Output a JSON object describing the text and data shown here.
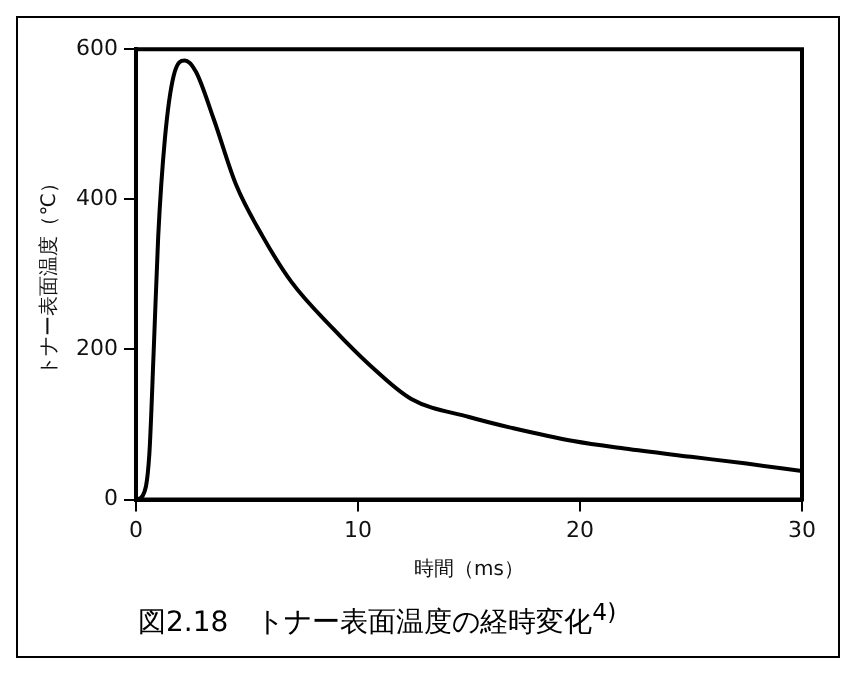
{
  "chart_data": {
    "type": "line",
    "title": "図2.18　トナー表面温度の経時変化$^{4)}$",
    "xlabel": "時間（ms）",
    "ylabel": "トナー表面温度（℃）",
    "x": [
      0,
      0.3,
      0.6,
      0.8,
      1.0,
      1.3,
      1.7,
      2.2,
      2.7,
      3.5,
      4.5,
      5.7,
      7,
      8.9,
      10.5,
      12.4,
      15,
      17,
      19.7,
      22,
      25,
      27.5,
      30
    ],
    "series": [
      {
        "color": "#000000",
        "values": [
          0,
          5,
          60,
          200,
          350,
          480,
          565,
          585,
          570,
          507,
          420,
          351,
          290,
          227,
          180,
          134,
          110,
          95,
          78,
          68,
          57,
          48,
          38
        ]
      }
    ],
    "xlim": [
      0,
      30
    ],
    "xticks": [
      0,
      10,
      20,
      30
    ],
    "ylim": [
      0,
      600
    ],
    "yticks": [
      0,
      200,
      400,
      600
    ],
    "grid": false,
    "legend": false,
    "marker": "none",
    "line_style": "solid"
  }
}
